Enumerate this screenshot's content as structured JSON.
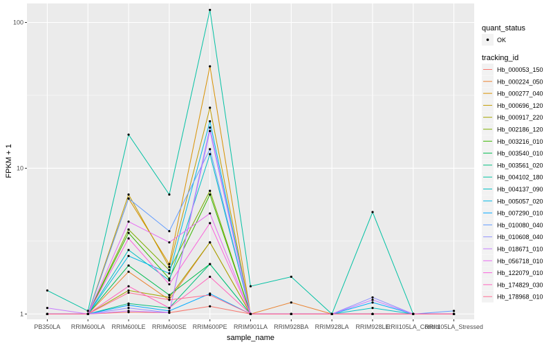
{
  "chart_data": {
    "type": "line",
    "xlabel": "sample_name",
    "ylabel": "FPKM + 1",
    "y_scale": "log10",
    "ylim": [
      0.92,
      135
    ],
    "y_ticks": [
      1,
      10,
      100
    ],
    "y_tick_labels": [
      "1",
      "10",
      "100"
    ],
    "grid": true,
    "legend_position": "right",
    "categories": [
      "PB350LA",
      "RRIM600LA",
      "RRIM600LE",
      "RRIM600SE",
      "RRIM600PE",
      "RRIM901LA",
      "RRIM928BA",
      "RRIM928LA",
      "RRIM928LE",
      "RRII105LA_Control",
      "RRII105LA_Stressed"
    ],
    "shape_legend": {
      "title": "quant_status",
      "entries": [
        "OK"
      ]
    },
    "color_legend_title": "tracking_id",
    "series": [
      {
        "name": "Hb_000053_150",
        "color": "#F8766D",
        "values": [
          1.0,
          1.0,
          1.03,
          1.02,
          1.13,
          1.0,
          1.0,
          1.0,
          1.0,
          1.0,
          1.0
        ]
      },
      {
        "name": "Hb_000224_050",
        "color": "#EA8331",
        "values": [
          1.0,
          1.0,
          1.95,
          1.25,
          3.1,
          1.0,
          1.2,
          1.0,
          1.0,
          1.0,
          1.0
        ]
      },
      {
        "name": "Hb_000277_040",
        "color": "#D89000",
        "values": [
          1.0,
          1.0,
          6.2,
          2.2,
          50.0,
          1.0,
          1.0,
          1.0,
          1.0,
          1.0,
          1.0
        ]
      },
      {
        "name": "Hb_000696_120",
        "color": "#C09B00",
        "values": [
          1.0,
          1.0,
          6.6,
          2.1,
          26.0,
          1.0,
          1.0,
          1.0,
          1.0,
          1.0,
          1.0
        ]
      },
      {
        "name": "Hb_000917_220",
        "color": "#A3A500",
        "values": [
          1.0,
          1.0,
          1.45,
          1.3,
          3.1,
          1.0,
          1.0,
          1.0,
          1.0,
          1.0,
          1.0
        ]
      },
      {
        "name": "Hb_002186_120",
        "color": "#7CAE00",
        "values": [
          1.0,
          1.0,
          3.8,
          2.0,
          7.0,
          1.0,
          1.0,
          1.0,
          1.0,
          1.0,
          1.0
        ]
      },
      {
        "name": "Hb_003216_010",
        "color": "#39B600",
        "values": [
          1.0,
          1.0,
          3.6,
          1.75,
          6.6,
          1.0,
          1.0,
          1.0,
          1.0,
          1.0,
          1.0
        ]
      },
      {
        "name": "Hb_003540_010",
        "color": "#00BB4E",
        "values": [
          1.0,
          1.0,
          2.15,
          1.35,
          2.2,
          1.0,
          1.0,
          1.0,
          1.0,
          1.0,
          1.0
        ]
      },
      {
        "name": "Hb_003561_020",
        "color": "#00BF7D",
        "values": [
          1.0,
          1.0,
          1.18,
          1.1,
          2.2,
          1.0,
          1.0,
          1.0,
          1.0,
          1.0,
          1.0
        ]
      },
      {
        "name": "Hb_004102_180",
        "color": "#00C1A3",
        "values": [
          1.45,
          1.05,
          17.0,
          6.6,
          122.0,
          1.55,
          1.8,
          1.0,
          5.0,
          1.0,
          1.0
        ]
      },
      {
        "name": "Hb_004137_090",
        "color": "#00BFC4",
        "values": [
          1.0,
          1.0,
          2.75,
          1.7,
          12.5,
          1.0,
          1.0,
          1.0,
          1.1,
          1.0,
          1.0
        ]
      },
      {
        "name": "Hb_005057_020",
        "color": "#00B8E5",
        "values": [
          1.0,
          1.0,
          2.5,
          1.9,
          21.0,
          1.0,
          1.0,
          1.0,
          1.0,
          1.0,
          1.0
        ]
      },
      {
        "name": "Hb_007290_010",
        "color": "#00A9FF",
        "values": [
          1.0,
          1.0,
          1.15,
          1.05,
          1.38,
          1.0,
          1.0,
          1.0,
          1.2,
          1.0,
          1.0
        ]
      },
      {
        "name": "Hb_010080_040",
        "color": "#619CFF",
        "values": [
          1.0,
          1.0,
          6.2,
          3.7,
          13.5,
          1.0,
          1.0,
          1.0,
          1.0,
          1.0,
          1.05
        ]
      },
      {
        "name": "Hb_010608_040",
        "color": "#8F91FF",
        "values": [
          1.0,
          1.0,
          1.1,
          1.02,
          19.0,
          1.0,
          1.0,
          1.0,
          1.3,
          1.0,
          1.0
        ]
      },
      {
        "name": "Hb_018671_010",
        "color": "#C77CFF",
        "values": [
          1.1,
          1.0,
          1.05,
          1.02,
          18.0,
          1.0,
          1.0,
          1.0,
          1.25,
          1.0,
          1.0
        ]
      },
      {
        "name": "Hb_056718_010",
        "color": "#E76BF3",
        "values": [
          1.0,
          1.0,
          4.3,
          3.1,
          4.9,
          1.0,
          1.0,
          1.0,
          1.0,
          1.0,
          1.0
        ]
      },
      {
        "name": "Hb_122079_010",
        "color": "#FA62DB",
        "values": [
          1.0,
          1.0,
          3.3,
          1.6,
          4.2,
          1.0,
          1.0,
          1.0,
          1.0,
          1.0,
          1.0
        ]
      },
      {
        "name": "Hb_174829_030",
        "color": "#FF62BC",
        "values": [
          1.0,
          1.0,
          1.55,
          1.1,
          1.8,
          1.0,
          1.0,
          1.0,
          1.0,
          1.0,
          1.0
        ]
      },
      {
        "name": "Hb_178968_010",
        "color": "#FF6C91",
        "values": [
          1.0,
          1.0,
          1.4,
          1.25,
          1.35,
          1.0,
          1.0,
          1.0,
          1.0,
          1.0,
          1.0
        ]
      }
    ]
  }
}
